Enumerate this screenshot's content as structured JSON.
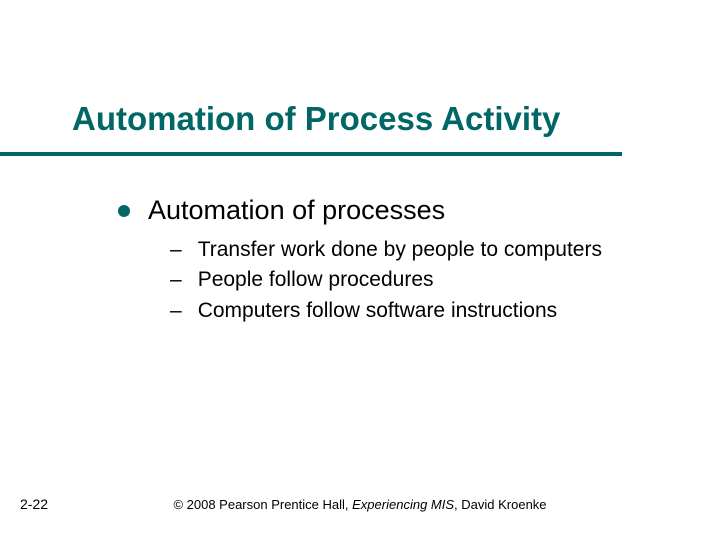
{
  "slide": {
    "title": "Automation of Process Activity",
    "title_fontsize": 33,
    "title_color": "#006666",
    "underline_color": "#006666",
    "underline_width": 622,
    "background_color": "#ffffff",
    "main_bullet": {
      "text": "Automation of processes",
      "fontsize": 27,
      "bullet_color": "#006666"
    },
    "sub_bullets": {
      "fontsize": 21,
      "items": [
        "Transfer work done by people to computers",
        "People follow procedures",
        "Computers follow software instructions"
      ]
    },
    "slide_number": "2-22",
    "slide_number_fontsize": 14,
    "footer": {
      "prefix": "© 2008 Pearson Prentice Hall, ",
      "italic": "Experiencing MIS",
      "suffix": ", David Kroenke",
      "fontsize": 13
    }
  }
}
